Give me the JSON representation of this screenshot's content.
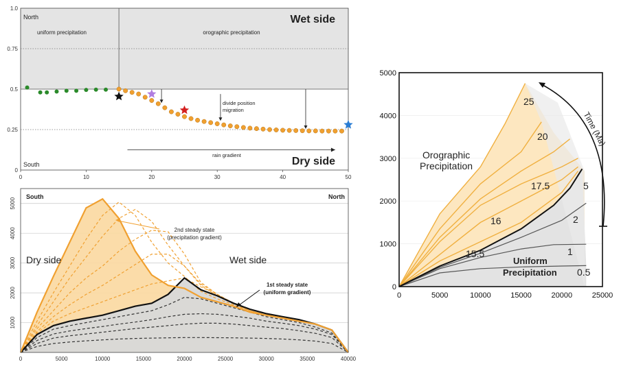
{
  "chart_data": [
    {
      "type": "scatter",
      "title": "",
      "xlabel": "",
      "ylabel": "",
      "xlim": [
        0,
        50
      ],
      "ylim": [
        0,
        1.0
      ],
      "x_ticks": [
        "0",
        "10",
        "20",
        "30",
        "40",
        "50"
      ],
      "y_ticks": [
        "0",
        "0.25",
        "0.5",
        "0.75",
        "1.0"
      ],
      "labels": {
        "north": "North",
        "south": "South",
        "wet_side": "Wet side",
        "dry_side": "Dry side",
        "uniform": "uniform precipitation",
        "orographic": "orographic precipitation",
        "divide": "divide position migration",
        "rain_gradient": "rain gradient"
      },
      "colors": {
        "uniform": "#2a8a2a",
        "orographic": "#f0a030",
        "wet_shade": "#e4e4e4"
      },
      "uniform_points": {
        "x": [
          1,
          3,
          4,
          5.5,
          7,
          8.5,
          10,
          11.5,
          13
        ],
        "y": [
          0.51,
          0.48,
          0.48,
          0.485,
          0.49,
          0.49,
          0.495,
          0.497,
          0.497
        ]
      },
      "orographic_points": {
        "x": [
          15,
          16,
          17,
          18,
          19,
          20,
          21,
          22,
          23,
          24,
          25,
          26,
          27,
          28,
          29,
          30,
          31,
          32,
          33,
          34,
          35,
          36,
          37,
          38,
          39,
          40,
          41,
          42,
          43,
          44,
          45,
          46,
          47,
          48,
          49
        ],
        "y": [
          0.5,
          0.49,
          0.48,
          0.47,
          0.45,
          0.43,
          0.41,
          0.385,
          0.36,
          0.345,
          0.33,
          0.318,
          0.308,
          0.3,
          0.293,
          0.286,
          0.279,
          0.273,
          0.268,
          0.263,
          0.259,
          0.256,
          0.253,
          0.25,
          0.248,
          0.246,
          0.245,
          0.244,
          0.243,
          0.242,
          0.242,
          0.241,
          0.241,
          0.241,
          0.241
        ]
      },
      "stars": [
        {
          "x": 15,
          "y": 0.455,
          "color": "#111111"
        },
        {
          "x": 20,
          "y": 0.47,
          "color": "#b07de0"
        },
        {
          "x": 25,
          "y": 0.37,
          "color": "#d42020"
        },
        {
          "x": 50,
          "y": 0.28,
          "color": "#2a7dd4"
        }
      ]
    },
    {
      "type": "line",
      "title": "",
      "xlabel": "",
      "ylabel": "",
      "xlim": [
        0,
        40000
      ],
      "ylim": [
        0,
        5500
      ],
      "x_ticks": [
        "0",
        "5000",
        "10000",
        "15000",
        "20000",
        "25000",
        "30000",
        "35000",
        "40000"
      ],
      "y_ticks": [
        "1000",
        "2000",
        "3000",
        "4000",
        "5000"
      ],
      "labels": {
        "south": "South",
        "north": "North",
        "dry_side": "Dry side",
        "wet_side": "Wet side",
        "second_a": "2nd steady state",
        "second_b": "(precipitation gradient)",
        "first_a": "1st steady state",
        "first_b": "(uniform gradient)"
      },
      "x": [
        0,
        2000,
        4000,
        6000,
        8000,
        10000,
        12000,
        14000,
        16000,
        18000,
        20000,
        22000,
        24000,
        26000,
        28000,
        30000,
        32000,
        34000,
        36000,
        38000,
        40000
      ],
      "uniform_steady": [
        0,
        600,
        900,
        1050,
        1150,
        1250,
        1400,
        1550,
        1650,
        1950,
        2500,
        2100,
        1900,
        1650,
        1450,
        1300,
        1200,
        1100,
        950,
        750,
        0
      ],
      "uniform_transients": [
        [
          0,
          500,
          780,
          900,
          1000,
          1100,
          1200,
          1300,
          1400,
          1600,
          1850,
          1800,
          1650,
          1500,
          1350,
          1200,
          1100,
          1000,
          850,
          650,
          0
        ],
        [
          0,
          400,
          620,
          720,
          800,
          870,
          950,
          1020,
          1100,
          1200,
          1280,
          1300,
          1280,
          1220,
          1150,
          1050,
          980,
          900,
          780,
          600,
          0
        ],
        [
          0,
          300,
          480,
          560,
          620,
          680,
          740,
          800,
          850,
          900,
          950,
          980,
          980,
          950,
          900,
          850,
          800,
          730,
          640,
          500,
          0
        ],
        [
          0,
          200,
          300,
          350,
          390,
          420,
          450,
          470,
          480,
          490,
          500,
          500,
          495,
          490,
          480,
          470,
          450,
          420,
          380,
          300,
          0
        ]
      ],
      "orographic_steady": [
        0,
        1350,
        2550,
        3700,
        4850,
        5150,
        4500,
        3400,
        2600,
        2250,
        2150,
        1850,
        1700,
        1550,
        1350,
        1250,
        1150,
        1050,
        950,
        750,
        0
      ],
      "orographic_transients": [
        [
          0,
          1050,
          2000,
          2900,
          3800,
          4600,
          5050,
          4600,
          3700,
          3000,
          2550,
          2050,
          1800,
          1600,
          1400,
          1250,
          1150,
          1050,
          950,
          750,
          0
        ],
        [
          0,
          900,
          1700,
          2500,
          3200,
          3900,
          4500,
          4800,
          4400,
          3600,
          2900,
          2250,
          1900,
          1650,
          1400,
          1250,
          1150,
          1050,
          950,
          750,
          0
        ],
        [
          0,
          800,
          1400,
          2000,
          2500,
          2900,
          3400,
          3800,
          4100,
          4050,
          3300,
          2350,
          1950,
          1650,
          1400,
          1250,
          1150,
          1050,
          950,
          750,
          0
        ],
        [
          0,
          700,
          1200,
          1600,
          1950,
          2250,
          2600,
          2950,
          3300,
          3300,
          2900,
          2300,
          1950,
          1650,
          1400,
          1250,
          1150,
          1050,
          950,
          750,
          0
        ],
        [
          0,
          650,
          1050,
          1300,
          1500,
          1700,
          1900,
          2100,
          2300,
          2400,
          2500,
          2200,
          1950,
          1650,
          1400,
          1250,
          1150,
          1050,
          950,
          750,
          0
        ]
      ],
      "colors": {
        "orographic": "#f0a030",
        "orographic_fill": "#fbd8a0",
        "uniform": "#111111",
        "uniform_fill": "#d8d8d8"
      }
    },
    {
      "type": "line",
      "title": "",
      "xlabel": "",
      "ylabel": "",
      "xlim": [
        0,
        25000
      ],
      "ylim": [
        0,
        5000
      ],
      "x_ticks": [
        "0",
        "5000",
        "10000",
        "15000",
        "20000",
        "25000"
      ],
      "y_ticks": [
        "0",
        "1000",
        "2000",
        "3000",
        "4000",
        "5000"
      ],
      "labels": {
        "orographic_a": "Orographic",
        "orographic_b": "Precipitation",
        "uniform_a": "Uniform",
        "uniform_b": "Precipitation",
        "time": "Time (Ma)"
      },
      "uniform_series": [
        {
          "name": "0.5",
          "x": [
            0,
            5000,
            10000,
            15000,
            20000,
            23000
          ],
          "y": [
            0,
            320,
            420,
            460,
            480,
            490
          ]
        },
        {
          "name": "1",
          "x": [
            0,
            5000,
            10000,
            15000,
            19000,
            23000
          ],
          "y": [
            0,
            420,
            680,
            880,
            980,
            990
          ]
        },
        {
          "name": "2",
          "x": [
            0,
            5000,
            10000,
            15000,
            20000,
            23000
          ],
          "y": [
            0,
            450,
            780,
            1150,
            1550,
            1950
          ]
        },
        {
          "name": "5",
          "x": [
            0,
            5000,
            10000,
            15000,
            19000,
            21000,
            22500
          ],
          "y": [
            0,
            480,
            850,
            1350,
            1900,
            2300,
            2750
          ]
        }
      ],
      "orographic_series": [
        {
          "name": "15.5",
          "x": [
            0,
            5000,
            10000,
            15000,
            20000,
            22000
          ],
          "y": [
            0,
            600,
            1050,
            1500,
            2200,
            2700
          ]
        },
        {
          "name": "16",
          "x": [
            0,
            5000,
            10000,
            15000,
            20000,
            22000
          ],
          "y": [
            0,
            750,
            1500,
            2000,
            2500,
            2800
          ]
        },
        {
          "name": "",
          "x": [
            0,
            5000,
            10000,
            15000,
            20000,
            22000
          ],
          "y": [
            0,
            1050,
            1900,
            2400,
            2800,
            3000
          ]
        },
        {
          "name": "17.5",
          "x": [
            0,
            5000,
            10000,
            15000,
            19000,
            21000
          ],
          "y": [
            0,
            1150,
            2050,
            2700,
            3150,
            3450
          ]
        },
        {
          "name": "20",
          "x": [
            0,
            5000,
            10000,
            15000,
            17500
          ],
          "y": [
            0,
            1350,
            2400,
            3150,
            3850
          ]
        },
        {
          "name": "25",
          "x": [
            0,
            5000,
            10000,
            13000,
            15500
          ],
          "y": [
            0,
            1700,
            2800,
            3800,
            4750
          ]
        }
      ],
      "colors": {
        "orographic": "#f0b040",
        "orographic_fill": "#fde7c0",
        "orographic_label": "#d97a30",
        "uniform": "#222222",
        "uniform_fill": "#e3e3e3"
      }
    }
  ]
}
